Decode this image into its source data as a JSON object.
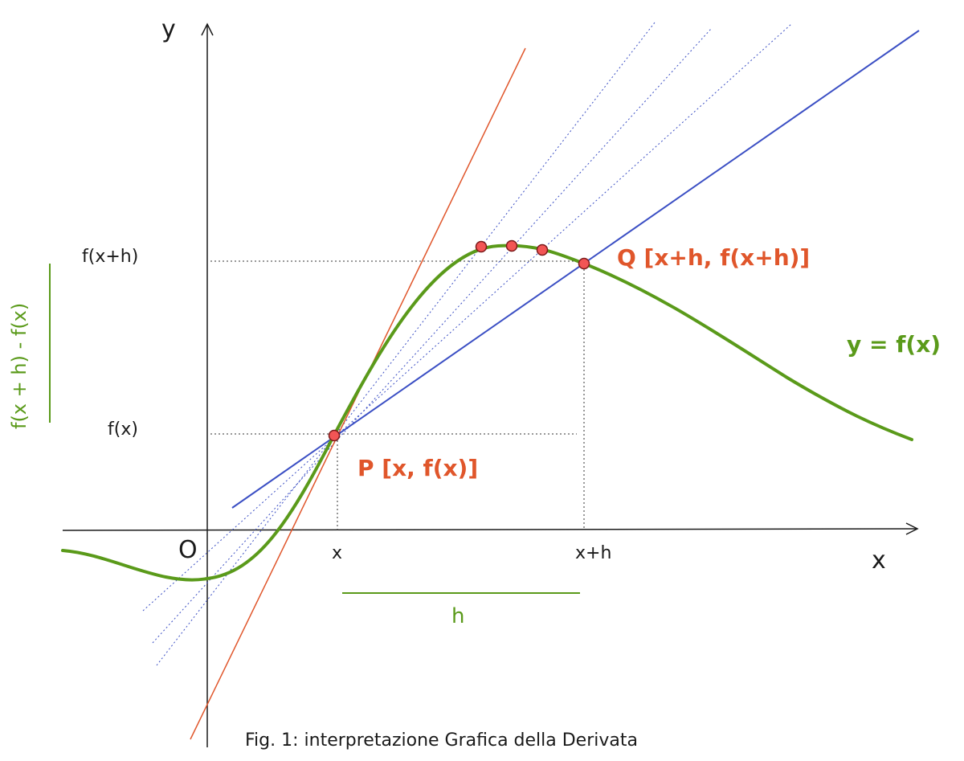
{
  "labels": {
    "y_axis": "y",
    "x_axis": "x",
    "origin": "O",
    "fx_plus_h": "f(x+h)",
    "fx": "f(x)",
    "x_tick": "x",
    "x_plus_h_tick": "x+h",
    "h": "h",
    "point_q": "Q [x+h, f(x+h)]",
    "point_p": "P [x, f(x)]",
    "curve": "y = f(x)",
    "delta_y": "f(x + h) - f(x)",
    "caption": "Fig. 1: interpretazione Grafica della Derivata"
  },
  "colors": {
    "curve": "#5a9a1a",
    "secant": "#3b4fc4",
    "tangent": "#e0562b",
    "points": "#f25555",
    "point_labels": "#e0562b",
    "green_labels": "#5a9a1a",
    "axes": "#1a1a1a"
  }
}
